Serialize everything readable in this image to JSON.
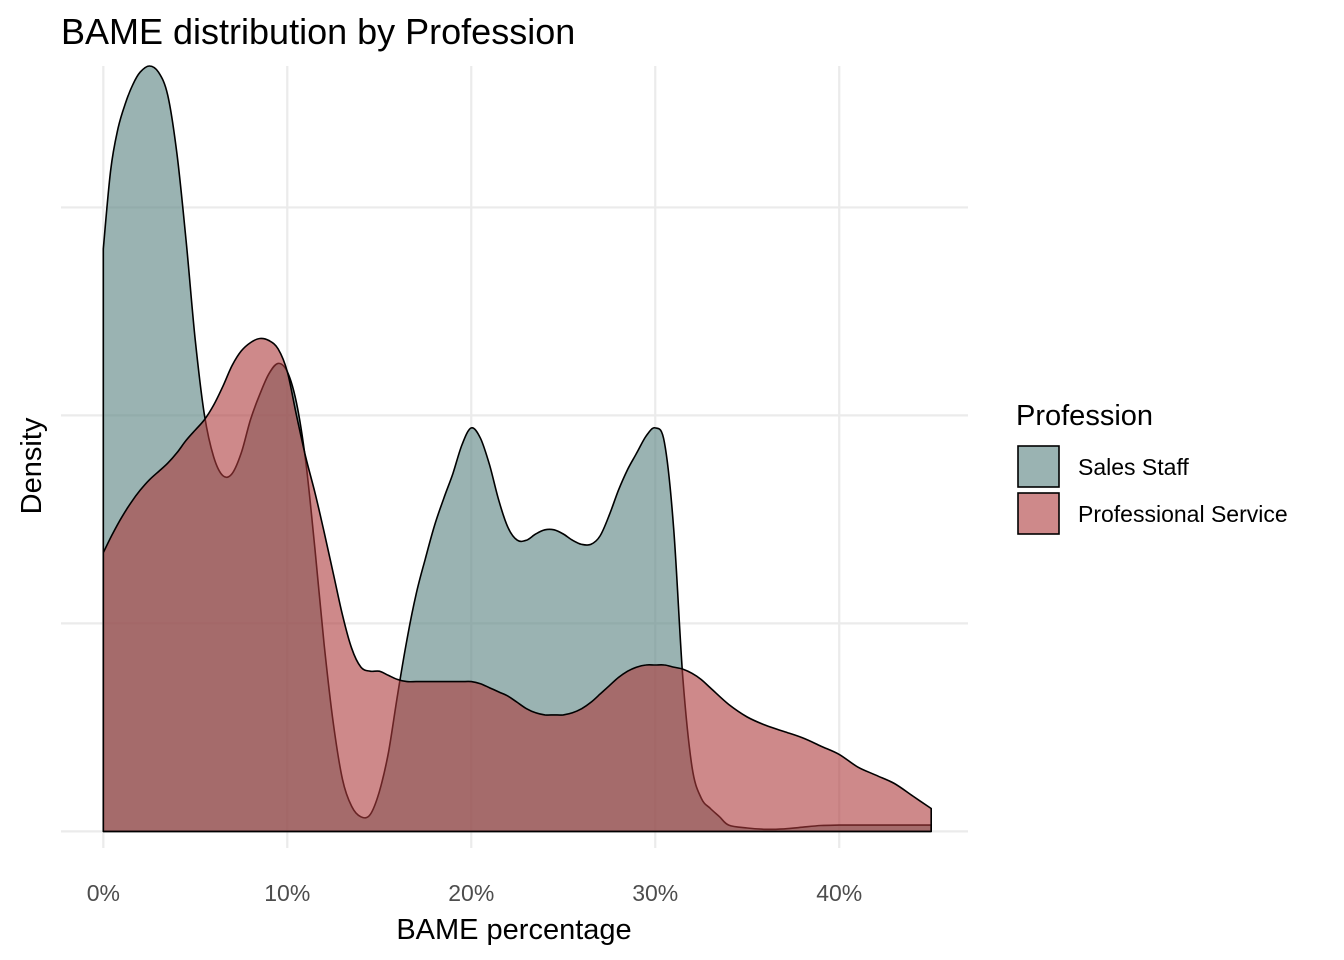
{
  "chart_data": {
    "type": "area",
    "subtype": "density",
    "title": "BAME distribution by Profession",
    "xlabel": "BAME percentage",
    "ylabel": "Density",
    "xlim": [
      -2.3,
      47
    ],
    "ylim": [
      -0.4,
      18.4
    ],
    "x_ticks": [
      0,
      10,
      20,
      30,
      40
    ],
    "x_tick_labels": [
      "0%",
      "10%",
      "20%",
      "30%",
      "40%"
    ],
    "y_gridlines": [
      0,
      5,
      10,
      15
    ],
    "y_tick_labels_shown": false,
    "grid": true,
    "legend": {
      "title": "Profession",
      "position": "right"
    },
    "series": [
      {
        "name": "Sales Staff",
        "color": "#5F8785",
        "opacity": 0.63,
        "x": [
          0,
          0.4,
          0.8,
          1.2,
          1.6,
          2.0,
          2.5,
          3.0,
          3.5,
          4.0,
          4.5,
          5.0,
          5.5,
          6.0,
          6.5,
          7.0,
          7.5,
          8.0,
          8.5,
          9.0,
          9.5,
          10.0,
          10.5,
          11.0,
          11.5,
          12.0,
          12.5,
          13.0,
          13.5,
          14.0,
          14.5,
          15.0,
          15.5,
          16.0,
          16.5,
          17.0,
          17.5,
          18.0,
          18.5,
          19.0,
          19.5,
          20.0,
          20.5,
          21.0,
          21.5,
          22.0,
          22.5,
          23.0,
          23.5,
          24.0,
          24.5,
          25.0,
          25.5,
          26.0,
          26.5,
          27.0,
          27.5,
          28.0,
          28.5,
          29.0,
          29.5,
          30.0,
          30.5,
          31.0,
          31.5,
          32.0,
          32.5,
          33.0,
          33.5,
          34.0,
          35.0,
          36.0,
          37.0,
          38.0,
          39.0,
          40.0,
          41.0,
          42.0,
          43.0,
          44.0,
          45.0
        ],
        "y": [
          14.0,
          15.9,
          16.9,
          17.5,
          17.95,
          18.25,
          18.4,
          18.25,
          17.7,
          16.3,
          14.2,
          11.8,
          10.0,
          9.0,
          8.55,
          8.6,
          9.1,
          9.9,
          10.5,
          11.0,
          11.25,
          11.05,
          10.3,
          8.9,
          6.8,
          4.5,
          2.6,
          1.25,
          0.6,
          0.35,
          0.4,
          0.95,
          1.9,
          3.3,
          4.6,
          5.7,
          6.55,
          7.35,
          8.0,
          8.6,
          9.3,
          9.7,
          9.45,
          8.8,
          7.95,
          7.3,
          7.0,
          7.0,
          7.15,
          7.25,
          7.25,
          7.15,
          7.0,
          6.9,
          6.9,
          7.1,
          7.6,
          8.2,
          8.7,
          9.1,
          9.5,
          9.7,
          9.35,
          7.3,
          3.7,
          1.55,
          0.8,
          0.55,
          0.35,
          0.15,
          0.08,
          0.05,
          0.06,
          0.1,
          0.14,
          0.15,
          0.15,
          0.15,
          0.15,
          0.15,
          0.15
        ]
      },
      {
        "name": "Professional Service",
        "color": "#AE3B3C",
        "opacity": 0.6,
        "x": [
          0,
          0.5,
          1.0,
          1.5,
          2.0,
          2.5,
          3.0,
          3.5,
          4.0,
          4.5,
          5.0,
          5.5,
          6.0,
          6.5,
          7.0,
          7.5,
          8.0,
          8.5,
          9.0,
          9.5,
          10.0,
          10.5,
          11.0,
          11.5,
          12.0,
          12.5,
          13.0,
          13.5,
          14.0,
          14.5,
          15.0,
          15.5,
          16.0,
          16.5,
          17.0,
          17.5,
          18.0,
          18.5,
          19.0,
          19.5,
          20.0,
          20.5,
          21.0,
          21.5,
          22.0,
          22.5,
          23.0,
          23.5,
          24.0,
          24.5,
          25.0,
          25.5,
          26.0,
          26.5,
          27.0,
          27.5,
          28.0,
          28.5,
          29.0,
          29.5,
          30.0,
          30.5,
          31.0,
          31.5,
          32.0,
          32.5,
          33.0,
          34.0,
          35.0,
          36.0,
          37.0,
          38.0,
          39.0,
          40.0,
          41.0,
          42.0,
          43.0,
          44.0,
          45.0
        ],
        "y": [
          6.7,
          7.15,
          7.55,
          7.9,
          8.2,
          8.45,
          8.65,
          8.85,
          9.1,
          9.4,
          9.65,
          9.9,
          10.25,
          10.7,
          11.2,
          11.55,
          11.75,
          11.85,
          11.8,
          11.6,
          11.05,
          10.0,
          9.0,
          8.15,
          7.2,
          6.2,
          5.2,
          4.4,
          3.95,
          3.85,
          3.85,
          3.75,
          3.65,
          3.6,
          3.6,
          3.6,
          3.6,
          3.6,
          3.6,
          3.6,
          3.6,
          3.55,
          3.45,
          3.35,
          3.25,
          3.1,
          2.95,
          2.85,
          2.8,
          2.8,
          2.8,
          2.85,
          2.95,
          3.1,
          3.3,
          3.5,
          3.7,
          3.85,
          3.95,
          4.0,
          4.0,
          4.0,
          3.95,
          3.9,
          3.8,
          3.65,
          3.45,
          3.05,
          2.75,
          2.55,
          2.4,
          2.25,
          2.05,
          1.85,
          1.55,
          1.35,
          1.15,
          0.85,
          0.55
        ]
      }
    ]
  }
}
